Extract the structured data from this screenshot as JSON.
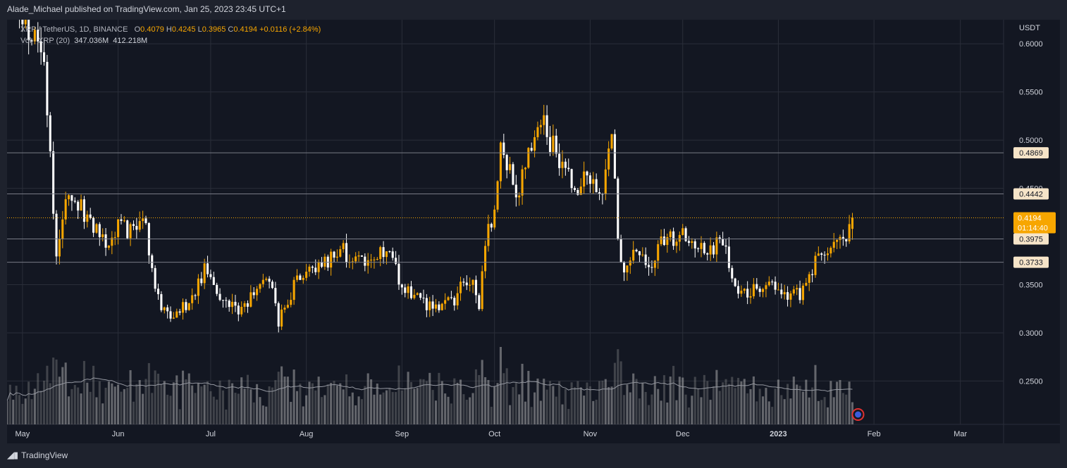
{
  "header": {
    "attribution": "Alade_Michael published on TradingView.com, Jan 25, 2023 23:45 UTC+1"
  },
  "legend": {
    "symbol": "XRP / TetherUS, 1D, BINANCE",
    "open_label": "O",
    "open": "0.4079",
    "high_label": "H",
    "high": "0.4245",
    "low_label": "L",
    "low": "0.3965",
    "close_label": "C",
    "close": "0.4194",
    "change": "+0.0116 (+2.84%)",
    "vol_label": "Vol · XRP (20)",
    "vol": "347.036M",
    "vol_ma": "412.218M"
  },
  "footer": {
    "brand": "TradingView"
  },
  "colors": {
    "up": "#f7a600",
    "down": "#ffffff",
    "background": "#131722",
    "grid": "#2a2e39",
    "level_line": "#787b86"
  },
  "chart_data": {
    "type": "candlestick",
    "symbol": "XRP / TetherUS",
    "interval": "1D",
    "exchange": "BINANCE",
    "currency": "USDT",
    "ylim": [
      0.205,
      0.625
    ],
    "y_ticks": [
      "0.6000",
      "0.5500",
      "0.5000",
      "0.4500",
      "0.3500",
      "0.3000",
      "0.2500"
    ],
    "x_labels": [
      "May",
      "Jun",
      "Jul",
      "Aug",
      "Sep",
      "Oct",
      "Nov",
      "Dec",
      "2023",
      "Feb",
      "Mar"
    ],
    "x_range": [
      "2022-04-26",
      "2023-03-15"
    ],
    "price_levels": [
      0.4869,
      0.4442,
      0.3975,
      0.3733
    ],
    "last_price": 0.4194,
    "countdown": "01:14:40",
    "close_path": [
      [
        "2022-04-26",
        0.65
      ],
      [
        "2022-05-01",
        0.62
      ],
      [
        "2022-05-06",
        0.6
      ],
      [
        "2022-05-08",
        0.58
      ],
      [
        "2022-05-10",
        0.48
      ],
      [
        "2022-05-12",
        0.38
      ],
      [
        "2022-05-14",
        0.42
      ],
      [
        "2022-05-17",
        0.445
      ],
      [
        "2022-05-22",
        0.42
      ],
      [
        "2022-05-28",
        0.39
      ],
      [
        "2022-06-01",
        0.41
      ],
      [
        "2022-06-05",
        0.405
      ],
      [
        "2022-06-10",
        0.41
      ],
      [
        "2022-06-13",
        0.35
      ],
      [
        "2022-06-16",
        0.32
      ],
      [
        "2022-06-20",
        0.315
      ],
      [
        "2022-06-25",
        0.34
      ],
      [
        "2022-06-29",
        0.365
      ],
      [
        "2022-07-01",
        0.35
      ],
      [
        "2022-07-05",
        0.33
      ],
      [
        "2022-07-10",
        0.325
      ],
      [
        "2022-07-15",
        0.34
      ],
      [
        "2022-07-20",
        0.355
      ],
      [
        "2022-07-23",
        0.31
      ],
      [
        "2022-07-28",
        0.35
      ],
      [
        "2022-08-03",
        0.37
      ],
      [
        "2022-08-08",
        0.375
      ],
      [
        "2022-08-12",
        0.385
      ],
      [
        "2022-08-16",
        0.38
      ],
      [
        "2022-08-20",
        0.37
      ],
      [
        "2022-08-25",
        0.385
      ],
      [
        "2022-08-29",
        0.38
      ],
      [
        "2022-09-01",
        0.34
      ],
      [
        "2022-09-05",
        0.345
      ],
      [
        "2022-09-09",
        0.33
      ],
      [
        "2022-09-14",
        0.33
      ],
      [
        "2022-09-18",
        0.335
      ],
      [
        "2022-09-21",
        0.35
      ],
      [
        "2022-09-23",
        0.355
      ],
      [
        "2022-09-26",
        0.33
      ],
      [
        "2022-09-28",
        0.39
      ],
      [
        "2022-10-01",
        0.43
      ],
      [
        "2022-10-03",
        0.49
      ],
      [
        "2022-10-05",
        0.48
      ],
      [
        "2022-10-08",
        0.44
      ],
      [
        "2022-10-12",
        0.48
      ],
      [
        "2022-10-16",
        0.52
      ],
      [
        "2022-10-19",
        0.5
      ],
      [
        "2022-10-23",
        0.47
      ],
      [
        "2022-10-27",
        0.45
      ],
      [
        "2022-10-31",
        0.46
      ],
      [
        "2022-11-05",
        0.45
      ],
      [
        "2022-11-08",
        0.5
      ],
      [
        "2022-11-10",
        0.4
      ],
      [
        "2022-11-12",
        0.36
      ],
      [
        "2022-11-15",
        0.38
      ],
      [
        "2022-11-20",
        0.37
      ],
      [
        "2022-11-24",
        0.395
      ],
      [
        "2022-11-28",
        0.4
      ],
      [
        "2022-12-01",
        0.4
      ],
      [
        "2022-12-05",
        0.395
      ],
      [
        "2022-12-10",
        0.39
      ],
      [
        "2022-12-15",
        0.39
      ],
      [
        "2022-12-18",
        0.35
      ],
      [
        "2022-12-22",
        0.345
      ],
      [
        "2022-12-26",
        0.35
      ],
      [
        "2022-12-29",
        0.36
      ],
      [
        "2023-01-01",
        0.34
      ],
      [
        "2023-01-05",
        0.338
      ],
      [
        "2023-01-08",
        0.34
      ],
      [
        "2023-01-11",
        0.36
      ],
      [
        "2023-01-14",
        0.38
      ],
      [
        "2023-01-17",
        0.39
      ],
      [
        "2023-01-19",
        0.385
      ],
      [
        "2023-01-21",
        0.408
      ],
      [
        "2023-01-23",
        0.405
      ],
      [
        "2023-01-24",
        0.4079
      ],
      [
        "2023-01-25",
        0.4194
      ]
    ]
  }
}
